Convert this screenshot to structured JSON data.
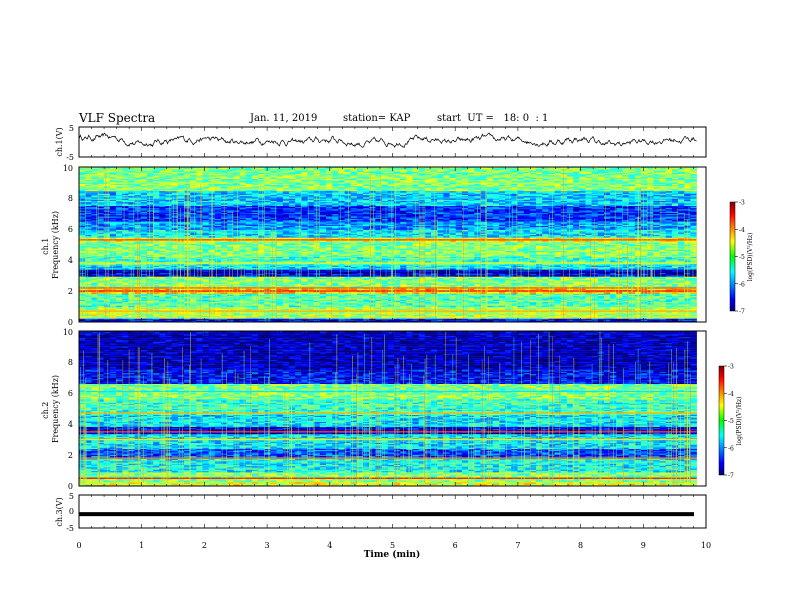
{
  "header": {
    "title": "VLF Spectra",
    "date": "Jan. 11, 2019",
    "station": "station= KAP",
    "start": "start  UT =   18: 0  : 1"
  },
  "chart_data": [
    {
      "type": "line",
      "ylabel": "ch.1(V)",
      "ylim": [
        -5,
        5
      ],
      "yticks": [
        "5",
        "-5"
      ],
      "x_range_min": [
        0,
        9.85
      ],
      "trend_knots": [
        [
          0,
          1.5
        ],
        [
          0.5,
          1.5
        ],
        [
          1.0,
          -0.5
        ],
        [
          1.5,
          0.5
        ],
        [
          2.0,
          1.0
        ],
        [
          2.5,
          0.0
        ],
        [
          3.0,
          0.5
        ],
        [
          3.5,
          0.0
        ],
        [
          4.0,
          0.8
        ],
        [
          4.5,
          -0.5
        ],
        [
          5.0,
          0.0
        ],
        [
          5.5,
          1.0
        ],
        [
          6.0,
          0.0
        ],
        [
          6.5,
          1.0
        ],
        [
          7.0,
          0.5
        ],
        [
          7.5,
          0.0
        ],
        [
          8.0,
          1.0
        ],
        [
          8.5,
          -0.8
        ],
        [
          9.0,
          0.2
        ],
        [
          9.5,
          0.8
        ],
        [
          9.85,
          1.0
        ]
      ]
    },
    {
      "type": "heatmap",
      "ylabel": "ch.1 Frequency (kHz)",
      "ylim": [
        0,
        10
      ],
      "yticks": [
        "0",
        "2",
        "4",
        "6",
        "8",
        "10"
      ],
      "colorbar": {
        "label": "log(PSD)(V²/Hz)",
        "ticks": [
          "-3",
          "-4",
          "-5",
          "-6",
          "-7"
        ],
        "range": [
          -7,
          -3
        ]
      },
      "bands_khz": [
        {
          "from": 0.0,
          "to": 0.3,
          "level": -6.5
        },
        {
          "from": 0.3,
          "to": 1.0,
          "level": -4.8
        },
        {
          "from": 1.0,
          "to": 1.9,
          "level": -5.2
        },
        {
          "from": 1.9,
          "to": 2.3,
          "level": -4.3
        },
        {
          "from": 2.3,
          "to": 3.0,
          "level": -5.0
        },
        {
          "from": 3.0,
          "to": 3.4,
          "level": -6.6
        },
        {
          "from": 3.4,
          "to": 3.7,
          "level": -5.6
        },
        {
          "from": 3.7,
          "to": 4.2,
          "level": -5.3
        },
        {
          "from": 4.2,
          "to": 5.2,
          "level": -5.0
        },
        {
          "from": 5.2,
          "to": 5.5,
          "level": -4.6
        },
        {
          "from": 5.5,
          "to": 6.0,
          "level": -5.6
        },
        {
          "from": 6.0,
          "to": 6.5,
          "level": -5.9
        },
        {
          "from": 6.5,
          "to": 7.5,
          "level": -6.3
        },
        {
          "from": 7.5,
          "to": 8.5,
          "level": -5.7
        },
        {
          "from": 8.5,
          "to": 10.0,
          "level": -5.0
        }
      ],
      "lines_khz": [
        {
          "f": 0.7,
          "level": -4.2
        },
        {
          "f": 2.0,
          "level": -3.6
        },
        {
          "f": 2.2,
          "level": -3.9
        },
        {
          "f": 3.2,
          "level": -6.9
        },
        {
          "f": 5.3,
          "level": -3.8
        },
        {
          "f": 3.8,
          "level": -4.6
        }
      ]
    },
    {
      "type": "heatmap",
      "ylabel": "ch.2 Frequency (kHz)",
      "ylim": [
        0,
        10
      ],
      "yticks": [
        "0",
        "2",
        "4",
        "6",
        "8",
        "10"
      ],
      "colorbar": {
        "label": "log(PSD)(V²/Hz)",
        "ticks": [
          "-3",
          "-4",
          "-5",
          "-6",
          "-7"
        ],
        "range": [
          -7,
          -3
        ]
      },
      "bands_khz": [
        {
          "from": 0.0,
          "to": 0.3,
          "level": -4.6
        },
        {
          "from": 0.3,
          "to": 0.9,
          "level": -5.0
        },
        {
          "from": 0.9,
          "to": 1.9,
          "level": -5.5
        },
        {
          "from": 1.9,
          "to": 2.4,
          "level": -6.2
        },
        {
          "from": 2.4,
          "to": 3.4,
          "level": -5.6
        },
        {
          "from": 3.4,
          "to": 3.9,
          "level": -6.6
        },
        {
          "from": 3.9,
          "to": 4.6,
          "level": -5.6
        },
        {
          "from": 4.6,
          "to": 5.6,
          "level": -5.3
        },
        {
          "from": 5.6,
          "to": 6.6,
          "level": -5.0
        },
        {
          "from": 6.6,
          "to": 7.6,
          "level": -6.5
        },
        {
          "from": 7.6,
          "to": 10.0,
          "level": -6.8
        }
      ],
      "lines_khz": [
        {
          "f": 0.5,
          "level": -3.6
        },
        {
          "f": 1.8,
          "level": -3.9
        },
        {
          "f": 3.5,
          "level": -3.7
        },
        {
          "f": 4.7,
          "level": -4.2
        },
        {
          "f": 3.0,
          "level": -4.4
        },
        {
          "f": 6.1,
          "level": -5.6
        }
      ]
    },
    {
      "type": "line",
      "ylabel": "ch.3(V)",
      "ylim": [
        -5,
        5
      ],
      "yticks": [
        "5",
        "0",
        "-5"
      ],
      "constant_value": -0.8
    }
  ],
  "xaxis": {
    "label": "Time (min)",
    "ticks": [
      "0",
      "1",
      "2",
      "3",
      "4",
      "5",
      "6",
      "7",
      "8",
      "9",
      "10"
    ],
    "range": [
      0,
      10
    ]
  }
}
